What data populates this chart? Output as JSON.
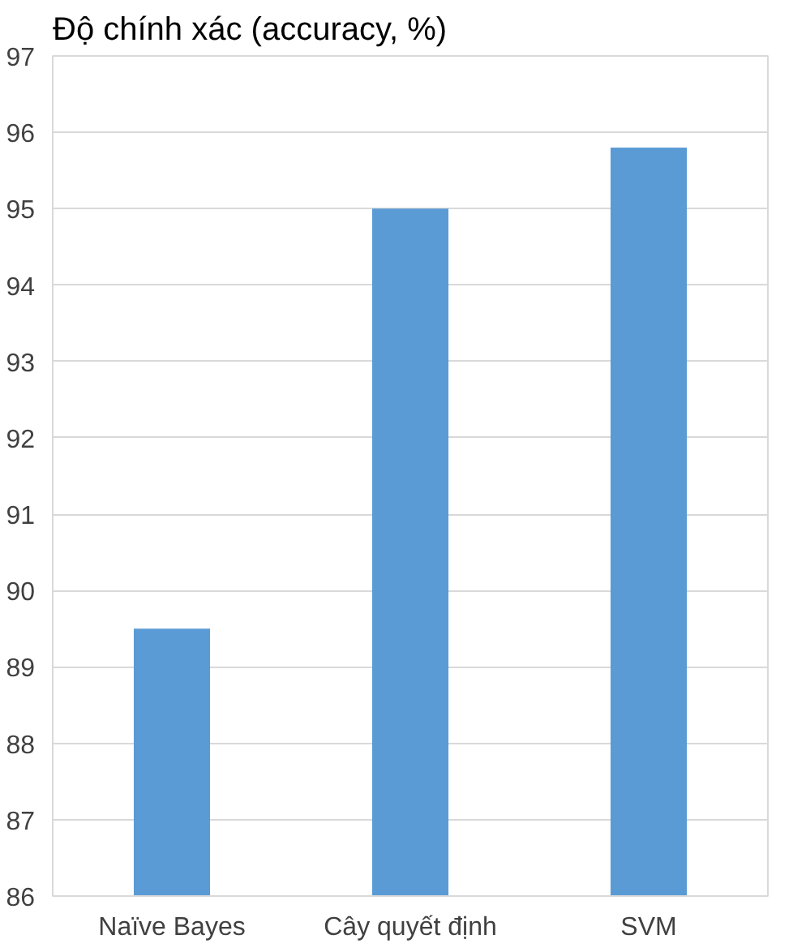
{
  "chart_data": {
    "type": "bar",
    "title": "Độ chính xác (accuracy, %)",
    "categories": [
      "Naïve Bayes",
      "Cây quyết định",
      "SVM"
    ],
    "values": [
      89.5,
      95.0,
      95.8
    ],
    "color": "#5b9bd5",
    "ylim": [
      86,
      97
    ],
    "yticks": [
      86,
      87,
      88,
      89,
      90,
      91,
      92,
      93,
      94,
      95,
      96,
      97
    ],
    "grid": "y"
  }
}
